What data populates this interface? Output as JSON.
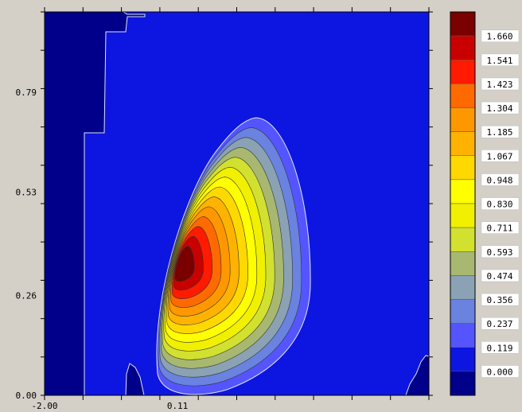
{
  "chart_data": {
    "type": "heatmap",
    "subtype": "filled-contour",
    "title": "",
    "xlabel": "",
    "ylabel": "",
    "xlim": [
      -2.0,
      4.1
    ],
    "ylim": [
      0.0,
      1.0
    ],
    "x_ticks": [
      {
        "value": -2.0,
        "label": "-2.00"
      },
      {
        "value": 0.11,
        "label": "0.11"
      }
    ],
    "y_ticks": [
      {
        "value": 0.0,
        "label": "0.00"
      },
      {
        "value": 0.26,
        "label": "0.26"
      },
      {
        "value": 0.53,
        "label": "0.53"
      },
      {
        "value": 0.79,
        "label": "0.79"
      }
    ],
    "contour_levels": [
      {
        "label": "0.000",
        "color": "#00008b"
      },
      {
        "label": "0.119",
        "color": "#0d16e0"
      },
      {
        "label": "0.237",
        "color": "#5555ff"
      },
      {
        "label": "0.356",
        "color": "#6a82e0"
      },
      {
        "label": "0.474",
        "color": "#8aa2b4"
      },
      {
        "label": "0.593",
        "color": "#a8b870"
      },
      {
        "label": "0.711",
        "color": "#d2e030"
      },
      {
        "label": "0.830",
        "color": "#f0f000"
      },
      {
        "label": "0.948",
        "color": "#ffff00"
      },
      {
        "label": "1.067",
        "color": "#ffd800"
      },
      {
        "label": "1.185",
        "color": "#ffb300"
      },
      {
        "label": "1.304",
        "color": "#ff9800"
      },
      {
        "label": "1.423",
        "color": "#ff6a00"
      },
      {
        "label": "1.541",
        "color": "#ff1a00"
      },
      {
        "label": "1.660",
        "color": "#c80000"
      },
      {
        "label": "",
        "color": "#7a0000"
      }
    ],
    "peak": {
      "x": 0.11,
      "y": 0.34,
      "value": 1.66
    },
    "legend_position": "right"
  }
}
